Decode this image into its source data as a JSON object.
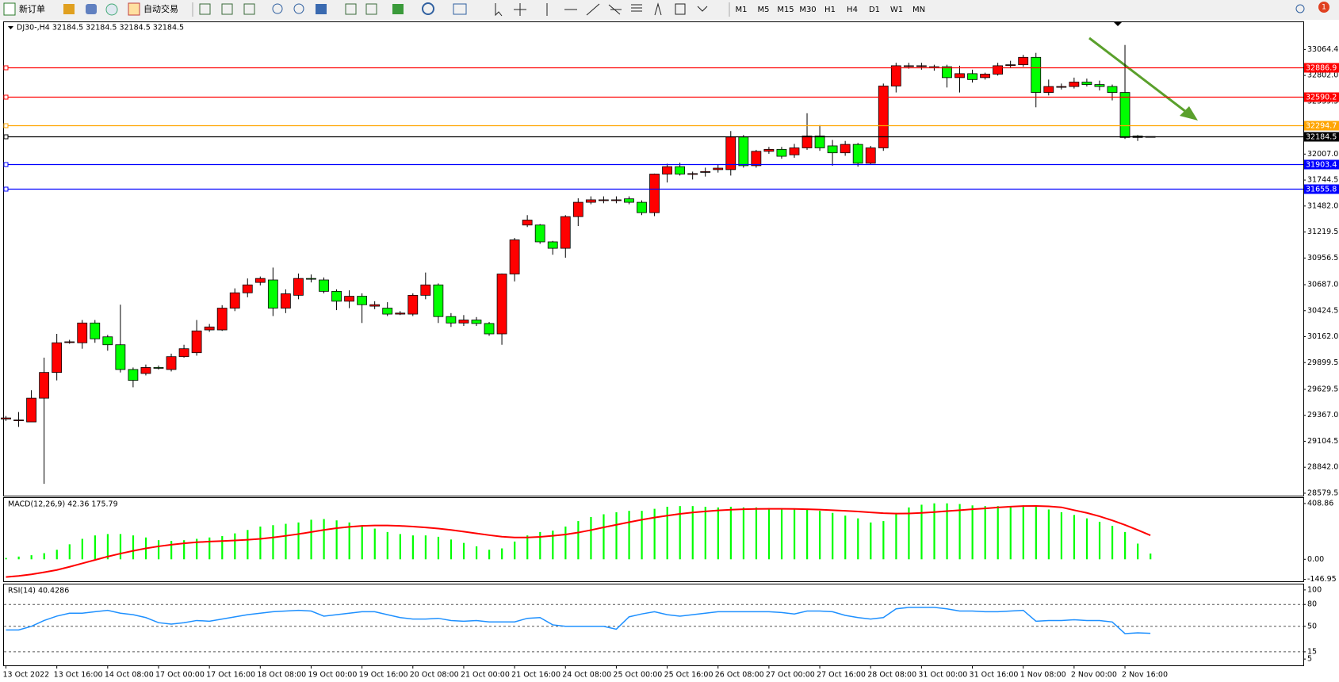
{
  "toolbar": {
    "new_order": "新订单",
    "auto_trading": "自动交易",
    "timeframes": [
      "M1",
      "M5",
      "M15",
      "M30",
      "H1",
      "H4",
      "D1",
      "W1",
      "MN"
    ],
    "notifications": "1"
  },
  "chart_data": [
    {
      "type": "candlestick",
      "title": "DJ30-,H4 32184.5 32184.5 32184.5 32184.5",
      "categories": [
        "13 Oct 2022",
        null,
        null,
        null,
        "13 Oct 16:00",
        null,
        null,
        null,
        "14 Oct 08:00",
        null,
        null,
        null,
        "17 Oct 00:00",
        null,
        null,
        null,
        "17 Oct 16:00",
        null,
        null,
        null,
        "18 Oct 08:00",
        null,
        null,
        null,
        "19 Oct 00:00",
        null,
        null,
        null,
        "19 Oct 16:00",
        null,
        null,
        null,
        "20 Oct 08:00",
        null,
        null,
        null,
        "21 Oct 00:00",
        null,
        null,
        null,
        "21 Oct 16:00",
        null,
        null,
        null,
        "24 Oct 08:00",
        null,
        null,
        null,
        "25 Oct 00:00",
        null,
        null,
        null,
        "25 Oct 16:00",
        null,
        null,
        null,
        "26 Oct 08:00",
        null,
        null,
        null,
        "27 Oct 00:00",
        null,
        null,
        null,
        "27 Oct 16:00",
        null,
        null,
        null,
        "28 Oct 08:00",
        null,
        null,
        null,
        "31 Oct 00:00",
        null,
        null,
        null,
        "31 Oct 16:00",
        null,
        null,
        null,
        "1 Nov 08:00",
        null,
        null,
        null,
        "2 Nov 00:00",
        null,
        null,
        null,
        "2 Nov 16:00",
        null,
        null
      ],
      "open": [
        29330,
        29320,
        29300,
        29540,
        29800,
        30110,
        30100,
        30300,
        30160,
        30080,
        29830,
        29790,
        29850,
        29830,
        29960,
        30000,
        30230,
        30230,
        30450,
        30605,
        30710,
        30735,
        30450,
        30580,
        30750,
        30735,
        30620,
        30520,
        30570,
        30470,
        30450,
        30390,
        30390,
        30580,
        30685,
        30365,
        30300,
        30330,
        30295,
        30190,
        30795,
        31290,
        31290,
        31120,
        31055,
        31375,
        31520,
        31545,
        31545,
        31555,
        31520,
        31415,
        31805,
        31880,
        31810,
        31830,
        31850,
        31850,
        32180,
        31890,
        32035,
        32055,
        32000,
        32070,
        32190,
        32090,
        32020,
        32105,
        31915,
        32070,
        32695,
        32900,
        32900,
        32890,
        32890,
        32780,
        32820,
        32780,
        32815,
        32910,
        32910,
        32985,
        32630,
        32690,
        32690,
        32735,
        32710,
        32690,
        32630,
        32190,
        32184.5
      ],
      "high": [
        29360,
        29400,
        29620,
        29950,
        30190,
        30130,
        30330,
        30330,
        30180,
        30485,
        29850,
        29880,
        29870,
        29990,
        30080,
        30330,
        30290,
        30480,
        30650,
        30750,
        30770,
        30860,
        30640,
        30800,
        30790,
        30760,
        30640,
        30630,
        30600,
        30520,
        30510,
        30420,
        30600,
        30810,
        30700,
        30400,
        30380,
        30360,
        30310,
        30800,
        31160,
        31390,
        31300,
        31130,
        31390,
        31560,
        31580,
        31580,
        31580,
        31580,
        31540,
        31810,
        31910,
        31920,
        31830,
        31870,
        31900,
        32240,
        32200,
        32050,
        32080,
        32080,
        32110,
        32420,
        32300,
        32150,
        32140,
        32120,
        32090,
        32720,
        32930,
        32930,
        32930,
        32910,
        32910,
        32900,
        32860,
        32830,
        32930,
        32950,
        33010,
        33030,
        32760,
        32720,
        32780,
        32770,
        32750,
        32710,
        33110,
        32200,
        32184.5
      ],
      "low": [
        29310,
        29250,
        29300,
        28674,
        29720,
        30090,
        30040,
        30100,
        30020,
        29800,
        29650,
        29770,
        29830,
        29810,
        29950,
        29970,
        30210,
        30220,
        30420,
        30560,
        30680,
        30370,
        30400,
        30540,
        30710,
        30600,
        30430,
        30450,
        30300,
        30440,
        30370,
        30380,
        30370,
        30540,
        30300,
        30260,
        30270,
        30270,
        30170,
        30080,
        30720,
        31270,
        31100,
        30990,
        30960,
        31280,
        31500,
        31510,
        31510,
        31500,
        31390,
        31380,
        31720,
        31790,
        31750,
        31780,
        31820,
        31790,
        31870,
        31870,
        32010,
        31960,
        31970,
        32050,
        32040,
        31890,
        31990,
        31880,
        31900,
        32040,
        32630,
        32870,
        32860,
        32850,
        32680,
        32630,
        32730,
        32760,
        32800,
        32880,
        32890,
        32480,
        32600,
        32660,
        32670,
        32690,
        32650,
        32550,
        32160,
        32140,
        32184.5
      ],
      "close": [
        29340,
        29320,
        29540,
        29800,
        30100,
        30110,
        30300,
        30140,
        30080,
        29830,
        29720,
        29850,
        29845,
        29960,
        30040,
        30220,
        30260,
        30450,
        30605,
        30685,
        30750,
        30450,
        30595,
        30750,
        30745,
        30620,
        30520,
        30570,
        30485,
        30485,
        30390,
        30400,
        30580,
        30685,
        30365,
        30300,
        30330,
        30295,
        30190,
        30795,
        31140,
        31340,
        31120,
        31055,
        31375,
        31520,
        31545,
        31545,
        31545,
        31520,
        31415,
        31805,
        31880,
        31805,
        31810,
        31830,
        31865,
        32180,
        31890,
        32035,
        32055,
        31985,
        32070,
        32190,
        32070,
        32020,
        32105,
        31915,
        32070,
        32695,
        32900,
        32900,
        32900,
        32890,
        32780,
        32820,
        32760,
        32815,
        32900,
        32910,
        32985,
        32630,
        32690,
        32690,
        32735,
        32710,
        32690,
        32630,
        32175,
        32175,
        32184.5
      ],
      "up_color": "#ff0000",
      "down_color": "#00ff00",
      "ylim": [
        28555,
        33340
      ],
      "yticks": [
        33064.4,
        {
          "value": 32802,
          "label": "32802.0"
        },
        32539.5,
        {
          "value": 32007,
          "label": "32007.0"
        },
        31744.5,
        {
          "value": 31482,
          "label": "31482.0"
        },
        31219.5,
        30956.5,
        {
          "value": 30687,
          "label": "30687.0"
        },
        30424.5,
        {
          "value": 30162,
          "label": "30162.0"
        },
        29899.5,
        29629.5,
        {
          "value": 29367,
          "label": "29367.0"
        },
        29104.5,
        {
          "value": 28842,
          "label": "28842.0"
        },
        28579.5
      ],
      "levels": [
        {
          "value": 32886.9,
          "color": "#ff0000"
        },
        {
          "value": 32590.2,
          "color": "#ff0000"
        },
        {
          "value": 32294.7,
          "color": "#ffa500"
        },
        {
          "value": 32184.5,
          "color": "#000000"
        },
        {
          "value": 31903.4,
          "color": "#0000ff"
        },
        {
          "value": 31655.8,
          "color": "#0000ff"
        }
      ]
    },
    {
      "type": "macd",
      "label": "MACD(12,26,9) 42.36 175.79",
      "histogram": {
        "color": "#00ff00",
        "values": [
          10,
          20,
          30,
          45,
          70,
          110,
          150,
          175,
          185,
          185,
          175,
          160,
          140,
          135,
          140,
          150,
          160,
          170,
          190,
          215,
          240,
          250,
          260,
          270,
          290,
          295,
          285,
          270,
          250,
          225,
          200,
          185,
          175,
          175,
          165,
          145,
          120,
          95,
          70,
          80,
          130,
          175,
          200,
          210,
          240,
          280,
          310,
          330,
          345,
          355,
          355,
          370,
          385,
          390,
          390,
          385,
          380,
          385,
          380,
          380,
          375,
          370,
          365,
          365,
          355,
          340,
          320,
          300,
          270,
          280,
          340,
          380,
          400,
          410,
          410,
          405,
          395,
          390,
          390,
          390,
          395,
          385,
          365,
          345,
          325,
          300,
          275,
          245,
          200,
          115,
          42.36
        ]
      },
      "signal": {
        "color": "#ff0000",
        "values": [
          -130,
          -122,
          -110,
          -95,
          -78,
          -55,
          -30,
          -5,
          20,
          42,
          62,
          80,
          95,
          107,
          117,
          125,
          130,
          134,
          138,
          143,
          150,
          160,
          172,
          185,
          200,
          215,
          228,
          238,
          245,
          248,
          248,
          245,
          240,
          233,
          225,
          215,
          203,
          190,
          177,
          166,
          160,
          160,
          164,
          172,
          182,
          196,
          214,
          234,
          253,
          272,
          290,
          306,
          320,
          333,
          343,
          351,
          358,
          363,
          367,
          369,
          370,
          370,
          369,
          367,
          364,
          360,
          355,
          350,
          344,
          338,
          335,
          336,
          340,
          346,
          353,
          360,
          367,
          373,
          380,
          386,
          390,
          391,
          388,
          381,
          360,
          340,
          315,
          285,
          252,
          215,
          175.79
        ]
      },
      "ylim": [
        -161,
        449
      ],
      "yticks": [
        408.86,
        {
          "value": 0,
          "label": "0.00"
        },
        -146.95
      ]
    },
    {
      "type": "line",
      "label": "RSI(14) 40.4286",
      "color": "#1e90ff",
      "values": [
        45,
        45,
        50,
        58,
        64,
        68,
        68,
        70,
        72,
        68,
        66,
        62,
        55,
        53,
        55,
        58,
        57,
        60,
        63,
        66,
        68,
        70,
        71,
        72,
        71,
        64,
        66,
        68,
        70,
        70,
        66,
        62,
        60,
        60,
        61,
        58,
        57,
        58,
        56,
        56,
        56,
        61,
        62,
        52,
        50,
        50,
        50,
        50,
        46,
        63,
        67,
        70,
        66,
        64,
        66,
        68,
        70,
        70,
        70,
        70,
        70,
        69,
        67,
        71,
        71,
        70,
        65,
        62,
        60,
        62,
        74,
        76,
        76,
        76,
        74,
        71,
        71,
        70,
        70,
        71,
        72,
        57,
        58,
        58,
        59,
        58,
        58,
        56,
        40,
        41,
        40.4286
      ],
      "ylim": [
        -3.6,
        107.5
      ],
      "yticks": [
        100,
        80,
        50,
        15,
        5
      ]
    }
  ]
}
